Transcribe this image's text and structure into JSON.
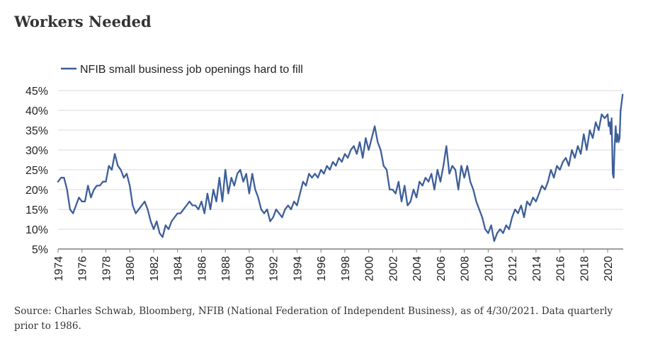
{
  "page": {
    "title": "Workers Needed",
    "source": "Source: Charles Schwab, Bloomberg, NFIB (National Federation of Independent Business), as of 4/30/2021. Data quarterly prior to 1986."
  },
  "chart_data": {
    "type": "line",
    "title": "Workers Needed",
    "xlabel": "",
    "ylabel": "",
    "xlim": [
      1974,
      2021.3
    ],
    "ylim": [
      5,
      45
    ],
    "y_ticks": [
      5,
      10,
      15,
      20,
      25,
      30,
      35,
      40,
      45
    ],
    "y_tick_labels": [
      "5%",
      "10%",
      "15%",
      "20%",
      "25%",
      "30%",
      "35%",
      "40%",
      "45%"
    ],
    "x_ticks": [
      1974,
      1976,
      1978,
      1980,
      1982,
      1984,
      1986,
      1988,
      1990,
      1992,
      1994,
      1996,
      1998,
      2000,
      2002,
      2004,
      2006,
      2008,
      2010,
      2012,
      2014,
      2016,
      2018,
      2020
    ],
    "x_tick_labels": [
      "1974",
      "1976",
      "1978",
      "1980",
      "1982",
      "1984",
      "1986",
      "1988",
      "1990",
      "1992",
      "1994",
      "1996",
      "1998",
      "2000",
      "2002",
      "2004",
      "2006",
      "2008",
      "2010",
      "2012",
      "2014",
      "2016",
      "2018",
      "2020"
    ],
    "grid": "horizontal",
    "legend_position": "top-left",
    "colors": {
      "series": "#3d5f9a",
      "grid": "#d9d9d9",
      "axis": "#7f7f7f"
    },
    "series": [
      {
        "name": "NFIB small business job openings hard to fill",
        "x": [
          1974.0,
          1974.25,
          1974.5,
          1974.75,
          1975.0,
          1975.25,
          1975.5,
          1975.75,
          1976.0,
          1976.25,
          1976.5,
          1976.75,
          1977.0,
          1977.25,
          1977.5,
          1977.75,
          1978.0,
          1978.25,
          1978.5,
          1978.75,
          1979.0,
          1979.25,
          1979.5,
          1979.75,
          1980.0,
          1980.25,
          1980.5,
          1980.75,
          1981.0,
          1981.25,
          1981.5,
          1981.75,
          1982.0,
          1982.25,
          1982.5,
          1982.75,
          1983.0,
          1983.25,
          1983.5,
          1983.75,
          1984.0,
          1984.25,
          1984.5,
          1984.75,
          1985.0,
          1985.25,
          1985.5,
          1985.75,
          1986.0,
          1986.25,
          1986.5,
          1986.75,
          1987.0,
          1987.25,
          1987.5,
          1987.75,
          1988.0,
          1988.25,
          1988.5,
          1988.75,
          1989.0,
          1989.25,
          1989.5,
          1989.75,
          1990.0,
          1990.25,
          1990.5,
          1990.75,
          1991.0,
          1991.25,
          1991.5,
          1991.75,
          1992.0,
          1992.25,
          1992.5,
          1992.75,
          1993.0,
          1993.25,
          1993.5,
          1993.75,
          1994.0,
          1994.25,
          1994.5,
          1994.75,
          1995.0,
          1995.25,
          1995.5,
          1995.75,
          1996.0,
          1996.25,
          1996.5,
          1996.75,
          1997.0,
          1997.25,
          1997.5,
          1997.75,
          1998.0,
          1998.25,
          1998.5,
          1998.75,
          1999.0,
          1999.25,
          1999.5,
          1999.75,
          2000.0,
          2000.25,
          2000.5,
          2000.75,
          2001.0,
          2001.25,
          2001.5,
          2001.75,
          2002.0,
          2002.25,
          2002.5,
          2002.75,
          2003.0,
          2003.25,
          2003.5,
          2003.75,
          2004.0,
          2004.25,
          2004.5,
          2004.75,
          2005.0,
          2005.25,
          2005.5,
          2005.75,
          2006.0,
          2006.25,
          2006.5,
          2006.75,
          2007.0,
          2007.25,
          2007.5,
          2007.75,
          2008.0,
          2008.25,
          2008.5,
          2008.75,
          2009.0,
          2009.25,
          2009.5,
          2009.75,
          2010.0,
          2010.25,
          2010.5,
          2010.75,
          2011.0,
          2011.25,
          2011.5,
          2011.75,
          2012.0,
          2012.25,
          2012.5,
          2012.75,
          2013.0,
          2013.25,
          2013.5,
          2013.75,
          2014.0,
          2014.25,
          2014.5,
          2014.75,
          2015.0,
          2015.25,
          2015.5,
          2015.75,
          2016.0,
          2016.25,
          2016.5,
          2016.75,
          2017.0,
          2017.25,
          2017.5,
          2017.75,
          2018.0,
          2018.25,
          2018.5,
          2018.75,
          2019.0,
          2019.25,
          2019.5,
          2019.75,
          2020.0,
          2020.08,
          2020.17,
          2020.25,
          2020.33,
          2020.42,
          2020.5,
          2020.58,
          2020.67,
          2020.75,
          2020.83,
          2020.92,
          2021.0,
          2021.08,
          2021.17,
          2021.25
        ],
        "y": [
          22,
          23,
          23,
          20,
          15,
          14,
          16,
          18,
          17,
          17,
          21,
          18,
          20,
          21,
          21,
          22,
          22,
          26,
          25,
          29,
          26,
          25,
          23,
          24,
          21,
          16,
          14,
          15,
          16,
          17,
          15,
          12,
          10,
          12,
          9,
          8,
          11,
          10,
          12,
          13,
          14,
          14,
          15,
          16,
          17,
          16,
          16,
          15,
          17,
          14,
          19,
          15,
          20,
          17,
          23,
          17,
          25,
          19,
          23,
          21,
          24,
          25,
          22,
          24,
          19,
          24,
          20,
          18,
          15,
          14,
          15,
          12,
          13,
          15,
          14,
          13,
          15,
          16,
          15,
          17,
          16,
          19,
          22,
          21,
          24,
          23,
          24,
          23,
          25,
          24,
          26,
          25,
          27,
          26,
          28,
          27,
          29,
          28,
          30,
          31,
          29,
          32,
          28,
          33,
          30,
          33,
          36,
          32,
          30,
          26,
          25,
          20,
          20,
          19,
          22,
          17,
          21,
          16,
          17,
          20,
          18,
          22,
          21,
          23,
          22,
          24,
          20,
          25,
          22,
          26,
          31,
          24,
          26,
          25,
          20,
          26,
          23,
          26,
          22,
          20,
          17,
          15,
          13,
          10,
          9,
          11,
          7,
          9,
          10,
          9,
          11,
          10,
          13,
          15,
          14,
          16,
          13,
          17,
          16,
          18,
          17,
          19,
          21,
          20,
          22,
          25,
          23,
          26,
          25,
          27,
          28,
          26,
          30,
          28,
          31,
          29,
          34,
          30,
          35,
          33,
          37,
          35,
          39,
          38,
          39,
          36,
          37,
          34,
          38,
          24,
          23,
          31,
          36,
          32,
          34,
          32,
          33,
          40,
          42,
          44
        ]
      }
    ]
  }
}
